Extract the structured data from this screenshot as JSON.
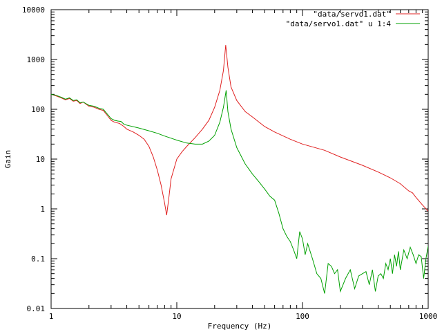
{
  "chart_data": {
    "type": "line",
    "xlabel": "Frequency (Hz)",
    "ylabel": "Gain",
    "xscale": "log",
    "yscale": "log",
    "xlim": [
      1,
      1000
    ],
    "ylim": [
      0.01,
      10000
    ],
    "grid": false,
    "legend_position": "top-right",
    "x_ticks": [
      {
        "value": 1,
        "label": "1"
      },
      {
        "value": 10,
        "label": "10"
      },
      {
        "value": 100,
        "label": "100"
      },
      {
        "value": 1000,
        "label": "1000"
      }
    ],
    "y_ticks": [
      {
        "value": 0.01,
        "label": "0.01"
      },
      {
        "value": 0.1,
        "label": "0.1"
      },
      {
        "value": 1,
        "label": "1"
      },
      {
        "value": 10,
        "label": "10"
      },
      {
        "value": 100,
        "label": "100"
      },
      {
        "value": 1000,
        "label": "1000"
      },
      {
        "value": 10000,
        "label": "10000"
      }
    ],
    "series": [
      {
        "name": "\"data/servo1.dat\"",
        "color": "#e02020",
        "points": [
          [
            1.0,
            200
          ],
          [
            1.1,
            185
          ],
          [
            1.2,
            170
          ],
          [
            1.3,
            155
          ],
          [
            1.4,
            165
          ],
          [
            1.5,
            145
          ],
          [
            1.6,
            150
          ],
          [
            1.7,
            130
          ],
          [
            1.8,
            140
          ],
          [
            2.0,
            115
          ],
          [
            2.2,
            110
          ],
          [
            2.4,
            100
          ],
          [
            2.6,
            95
          ],
          [
            2.8,
            75
          ],
          [
            3.0,
            60
          ],
          [
            3.2,
            55
          ],
          [
            3.5,
            52
          ],
          [
            3.8,
            45
          ],
          [
            4.0,
            40
          ],
          [
            4.5,
            35
          ],
          [
            5.0,
            30
          ],
          [
            5.5,
            25
          ],
          [
            6.0,
            18
          ],
          [
            6.5,
            11
          ],
          [
            7.0,
            6
          ],
          [
            7.5,
            3
          ],
          [
            8.0,
            1.3
          ],
          [
            8.3,
            0.75
          ],
          [
            8.6,
            1.5
          ],
          [
            9.0,
            4
          ],
          [
            10.0,
            10
          ],
          [
            11.0,
            14
          ],
          [
            12.0,
            18
          ],
          [
            14.0,
            27
          ],
          [
            16.0,
            40
          ],
          [
            18.0,
            60
          ],
          [
            20.0,
            110
          ],
          [
            22.0,
            240
          ],
          [
            23.5,
            600
          ],
          [
            24.5,
            1950
          ],
          [
            25.5,
            700
          ],
          [
            27.0,
            280
          ],
          [
            30.0,
            150
          ],
          [
            35.0,
            90
          ],
          [
            40.0,
            70
          ],
          [
            50.0,
            45
          ],
          [
            60.0,
            35
          ],
          [
            80.0,
            25
          ],
          [
            100.0,
            20
          ],
          [
            150.0,
            15
          ],
          [
            200.0,
            11
          ],
          [
            300.0,
            7.5
          ],
          [
            400.0,
            5.5
          ],
          [
            500.0,
            4.2
          ],
          [
            600.0,
            3.2
          ],
          [
            700.0,
            2.3
          ],
          [
            750.0,
            2.1
          ],
          [
            800.0,
            1.7
          ],
          [
            900.0,
            1.2
          ],
          [
            1000.0,
            0.9
          ]
        ]
      },
      {
        "name": "\"data/servo1.dat\" u 1:4",
        "color": "#00a000",
        "points": [
          [
            1.0,
            200
          ],
          [
            1.1,
            190
          ],
          [
            1.2,
            175
          ],
          [
            1.3,
            160
          ],
          [
            1.4,
            170
          ],
          [
            1.5,
            150
          ],
          [
            1.6,
            155
          ],
          [
            1.7,
            135
          ],
          [
            1.8,
            140
          ],
          [
            2.0,
            120
          ],
          [
            2.2,
            115
          ],
          [
            2.4,
            105
          ],
          [
            2.6,
            100
          ],
          [
            2.8,
            80
          ],
          [
            3.0,
            65
          ],
          [
            3.2,
            60
          ],
          [
            3.4,
            58
          ],
          [
            3.6,
            57
          ],
          [
            3.8,
            50
          ],
          [
            4.0,
            48
          ],
          [
            5.0,
            42
          ],
          [
            6.0,
            37
          ],
          [
            7.0,
            33
          ],
          [
            8.0,
            29
          ],
          [
            10.0,
            24
          ],
          [
            12.0,
            21
          ],
          [
            14.0,
            20
          ],
          [
            16.0,
            20
          ],
          [
            18.0,
            23
          ],
          [
            20.0,
            30
          ],
          [
            22.0,
            55
          ],
          [
            23.5,
            110
          ],
          [
            24.7,
            240
          ],
          [
            25.5,
            90
          ],
          [
            27.0,
            40
          ],
          [
            30.0,
            17
          ],
          [
            35.0,
            8
          ],
          [
            40.0,
            5
          ],
          [
            45.0,
            3.5
          ],
          [
            50.0,
            2.5
          ],
          [
            55.0,
            1.8
          ],
          [
            60.0,
            1.5
          ],
          [
            65.0,
            0.8
          ],
          [
            70.0,
            0.4
          ],
          [
            75.0,
            0.28
          ],
          [
            80.0,
            0.22
          ],
          [
            85.0,
            0.15
          ],
          [
            90.0,
            0.1
          ],
          [
            95.0,
            0.35
          ],
          [
            100.0,
            0.25
          ],
          [
            105.0,
            0.12
          ],
          [
            110.0,
            0.2
          ],
          [
            120.0,
            0.1
          ],
          [
            130.0,
            0.05
          ],
          [
            140.0,
            0.04
          ],
          [
            150.0,
            0.02
          ],
          [
            160.0,
            0.08
          ],
          [
            170.0,
            0.07
          ],
          [
            180.0,
            0.05
          ],
          [
            190.0,
            0.06
          ],
          [
            200.0,
            0.022
          ],
          [
            220.0,
            0.04
          ],
          [
            240.0,
            0.06
          ],
          [
            260.0,
            0.025
          ],
          [
            280.0,
            0.045
          ],
          [
            300.0,
            0.05
          ],
          [
            320.0,
            0.055
          ],
          [
            340.0,
            0.03
          ],
          [
            360.0,
            0.06
          ],
          [
            380.0,
            0.022
          ],
          [
            400.0,
            0.045
          ],
          [
            420.0,
            0.05
          ],
          [
            440.0,
            0.04
          ],
          [
            460.0,
            0.08
          ],
          [
            480.0,
            0.06
          ],
          [
            500.0,
            0.1
          ],
          [
            520.0,
            0.05
          ],
          [
            540.0,
            0.12
          ],
          [
            560.0,
            0.07
          ],
          [
            580.0,
            0.14
          ],
          [
            600.0,
            0.06
          ],
          [
            640.0,
            0.15
          ],
          [
            680.0,
            0.1
          ],
          [
            720.0,
            0.17
          ],
          [
            760.0,
            0.12
          ],
          [
            800.0,
            0.08
          ],
          [
            840.0,
            0.12
          ],
          [
            880.0,
            0.11
          ],
          [
            920.0,
            0.04
          ],
          [
            960.0,
            0.1
          ],
          [
            1000.0,
            0.18
          ]
        ]
      }
    ]
  }
}
